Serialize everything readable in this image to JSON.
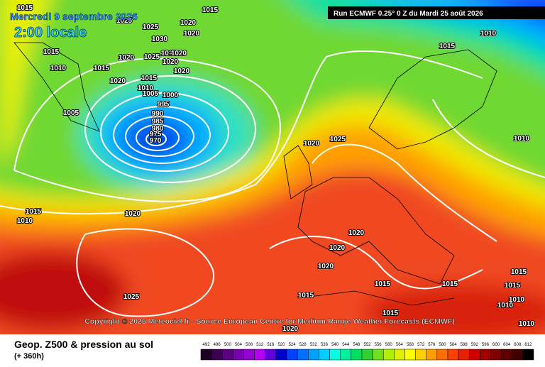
{
  "header": {
    "date": "Mercredi 9 septembre 2026",
    "time": "2:00 locale",
    "run": "Run ECMWF 0.25° 0 Z du Mardi 25 août 2026"
  },
  "copyright": "Copyright © 2026 Meteociel.fr - Source European Centre for Medium-Range Weather Forecasts (ECMWF)",
  "footer": {
    "title": "Geop. Z500 & pression au sol",
    "lead": "(+ 360h)"
  },
  "scale": [
    {
      "label": "492",
      "color": "#1e0022"
    },
    {
      "label": "496",
      "color": "#3c0050"
    },
    {
      "label": "500",
      "color": "#5a0080"
    },
    {
      "label": "504",
      "color": "#7800b0"
    },
    {
      "label": "508",
      "color": "#9600d0"
    },
    {
      "label": "512",
      "color": "#b400f0"
    },
    {
      "label": "516",
      "color": "#6000e0"
    },
    {
      "label": "520",
      "color": "#0000d0"
    },
    {
      "label": "524",
      "color": "#0040ff"
    },
    {
      "label": "528",
      "color": "#0070ff"
    },
    {
      "label": "532",
      "color": "#00a0ff"
    },
    {
      "label": "536",
      "color": "#00d0ff"
    },
    {
      "label": "540",
      "color": "#00ffe0"
    },
    {
      "label": "544",
      "color": "#00f0a0"
    },
    {
      "label": "548",
      "color": "#00e060"
    },
    {
      "label": "552",
      "color": "#30d030"
    },
    {
      "label": "556",
      "color": "#70e020"
    },
    {
      "label": "560",
      "color": "#b0f000"
    },
    {
      "label": "564",
      "color": "#e0f000"
    },
    {
      "label": "568",
      "color": "#ffff00"
    },
    {
      "label": "572",
      "color": "#ffd000"
    },
    {
      "label": "576",
      "color": "#ffa000"
    },
    {
      "label": "580",
      "color": "#ff7000"
    },
    {
      "label": "584",
      "color": "#ff4000"
    },
    {
      "label": "588",
      "color": "#e82000"
    },
    {
      "label": "592",
      "color": "#d00000"
    },
    {
      "label": "596",
      "color": "#a00000"
    },
    {
      "label": "600",
      "color": "#800000"
    },
    {
      "label": "604",
      "color": "#600000"
    },
    {
      "label": "608",
      "color": "#400000"
    },
    {
      "label": "612",
      "color": "#000000"
    }
  ],
  "isobars": [
    "1015",
    "1015",
    "1025",
    "1020",
    "1025",
    "1020",
    "1010",
    "1030",
    "1015",
    "1020",
    "1025",
    "1010",
    "1020",
    "1020",
    "1015",
    "1010",
    "1015",
    "1020",
    "1020",
    "1015",
    "1010",
    "1005",
    "1000",
    "995",
    "990",
    "985",
    "980",
    "975",
    "970",
    "1005",
    "1025",
    "1020",
    "1010",
    "1015",
    "1010",
    "1020",
    "1020",
    "1020",
    "1020",
    "1015",
    "1015",
    "1015",
    "1015",
    "1015",
    "1025",
    "1010",
    "1015",
    "1010",
    "1010",
    "1020"
  ]
}
